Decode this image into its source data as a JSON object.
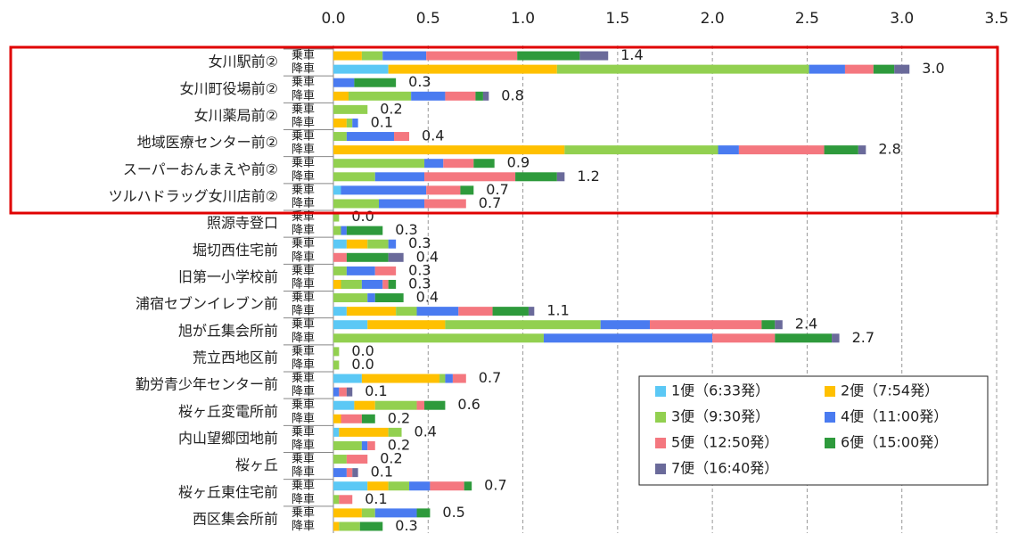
{
  "chart_data": {
    "type": "bar",
    "orientation": "horizontal",
    "stacked": true,
    "groups": [
      "女川駅前②",
      "女川町役場前②",
      "女川薬局前②",
      "地域医療センター前②",
      "スーパーおんまえや前②",
      "ツルハドラッグ女川店前②",
      "照源寺登口",
      "堀切西住宅前",
      "旧第一小学校前",
      "浦宿セブンイレブン前",
      "旭が丘集会所前",
      "荒立西地区前",
      "勤労青少年センター前",
      "桜ヶ丘変電所前",
      "内山望郷団地前",
      "桜ヶ丘",
      "桜ヶ丘東住宅前",
      "西区集会所前"
    ],
    "categories": [
      "乗車",
      "降車",
      "乗車",
      "降車",
      "乗車",
      "降車",
      "乗車",
      "降車",
      "乗車",
      "降車",
      "乗車",
      "降車",
      "乗車",
      "降車",
      "乗車",
      "降車",
      "乗車",
      "降車",
      "乗車",
      "降車",
      "乗車",
      "降車",
      "乗車",
      "降車",
      "乗車",
      "降車",
      "乗車",
      "降車",
      "乗車",
      "降車",
      "乗車",
      "降車",
      "乗車",
      "降車",
      "乗車",
      "降車"
    ],
    "series": [
      {
        "name": "1便（6:33発）",
        "color": "#5bc8f5",
        "values": [
          0,
          0.29,
          0,
          0,
          0,
          0,
          0,
          0,
          0,
          0,
          0.04,
          0,
          0,
          0,
          0.07,
          0,
          0,
          0,
          0,
          0.07,
          0.18,
          0,
          0,
          0,
          0.15,
          0,
          0.11,
          0,
          0.03,
          0,
          0,
          0,
          0.18,
          0,
          0,
          0
        ]
      },
      {
        "name": "2便（7:54発）",
        "color": "#ffc000",
        "values": [
          0.15,
          0.89,
          0,
          0.08,
          0,
          0.07,
          0,
          1.22,
          0,
          0,
          0,
          0,
          0,
          0,
          0.11,
          0,
          0,
          0.04,
          0,
          0.26,
          0.41,
          0,
          0,
          0,
          0.41,
          0,
          0.11,
          0.04,
          0.26,
          0,
          0,
          0,
          0.11,
          0,
          0.15,
          0.03
        ]
      },
      {
        "name": "3便（9:30発）",
        "color": "#92d050",
        "values": [
          0.11,
          1.33,
          0,
          0.33,
          0.18,
          0.03,
          0.07,
          0.81,
          0.48,
          0.22,
          0,
          0.24,
          0.03,
          0.04,
          0.11,
          0,
          0.07,
          0.11,
          0.18,
          0.11,
          0.82,
          1.11,
          0.03,
          0.03,
          0.03,
          0,
          0.22,
          0,
          0.07,
          0.15,
          0.07,
          0,
          0.11,
          0.03,
          0.07,
          0.11
        ]
      },
      {
        "name": "4便（11:00発）",
        "color": "#4a7bf0",
        "values": [
          0.23,
          0.19,
          0.11,
          0.18,
          0,
          0.03,
          0.25,
          0.11,
          0.1,
          0.26,
          0.45,
          0.24,
          0,
          0.03,
          0.04,
          0,
          0.15,
          0.11,
          0.04,
          0.22,
          0.26,
          0.89,
          0,
          0,
          0.04,
          0.03,
          0,
          0,
          0,
          0.03,
          0,
          0.07,
          0.11,
          0,
          0.22,
          0
        ]
      },
      {
        "name": "5便（12:50発）",
        "color": "#f4777f",
        "values": [
          0.48,
          0.15,
          0,
          0.16,
          0,
          0,
          0.08,
          0.45,
          0.16,
          0.48,
          0.18,
          0.22,
          0,
          0,
          0,
          0.07,
          0.11,
          0.03,
          0,
          0.18,
          0.59,
          0.33,
          0,
          0,
          0.07,
          0.04,
          0.04,
          0.11,
          0,
          0.04,
          0.11,
          0.03,
          0.18,
          0.07,
          0,
          0
        ]
      },
      {
        "name": "6便（15:00発）",
        "color": "#2e9a3c",
        "values": [
          0.33,
          0.11,
          0.22,
          0.04,
          0,
          0,
          0,
          0.18,
          0.11,
          0.22,
          0.07,
          0,
          0,
          0.19,
          0,
          0.22,
          0,
          0.04,
          0.15,
          0.19,
          0.07,
          0.3,
          0,
          0,
          0,
          0,
          0.11,
          0.07,
          0,
          0,
          0,
          0,
          0.04,
          0,
          0.07,
          0.12
        ]
      },
      {
        "name": "7便（16:40発）",
        "color": "#6a6a9a",
        "values": [
          0.15,
          0.08,
          0,
          0.03,
          0,
          0,
          0,
          0.04,
          0,
          0.04,
          0,
          0,
          0,
          0,
          0,
          0.08,
          0,
          0,
          0,
          0.03,
          0.04,
          0.04,
          0,
          0,
          0,
          0.03,
          0,
          0,
          0,
          0,
          0,
          0.03,
          0,
          0,
          0,
          0
        ]
      }
    ],
    "total_labels": [
      "1.4",
      "3.0",
      "0.3",
      "0.8",
      "0.2",
      "0.1",
      "0.4",
      "2.8",
      "0.9",
      "1.2",
      "0.7",
      "0.7",
      "0.0",
      "0.3",
      "0.3",
      "0.4",
      "0.3",
      "0.3",
      "0.4",
      "1.1",
      "2.4",
      "2.7",
      "0.0",
      "0.0",
      "0.7",
      "0.1",
      "0.6",
      "0.2",
      "0.4",
      "0.2",
      "0.2",
      "0.1",
      "0.7",
      "0.1",
      "0.5",
      "0.3"
    ],
    "xlim": [
      0,
      3.5
    ],
    "xticks": [
      {
        "value": 0,
        "label": "0.0"
      },
      0.5,
      {
        "value": 1,
        "label": "1.0"
      },
      1.5,
      {
        "value": 2,
        "label": "2.0"
      },
      2.5,
      {
        "value": 3,
        "label": "3.0"
      },
      3.5
    ],
    "grid": true,
    "legend": "lower right"
  }
}
